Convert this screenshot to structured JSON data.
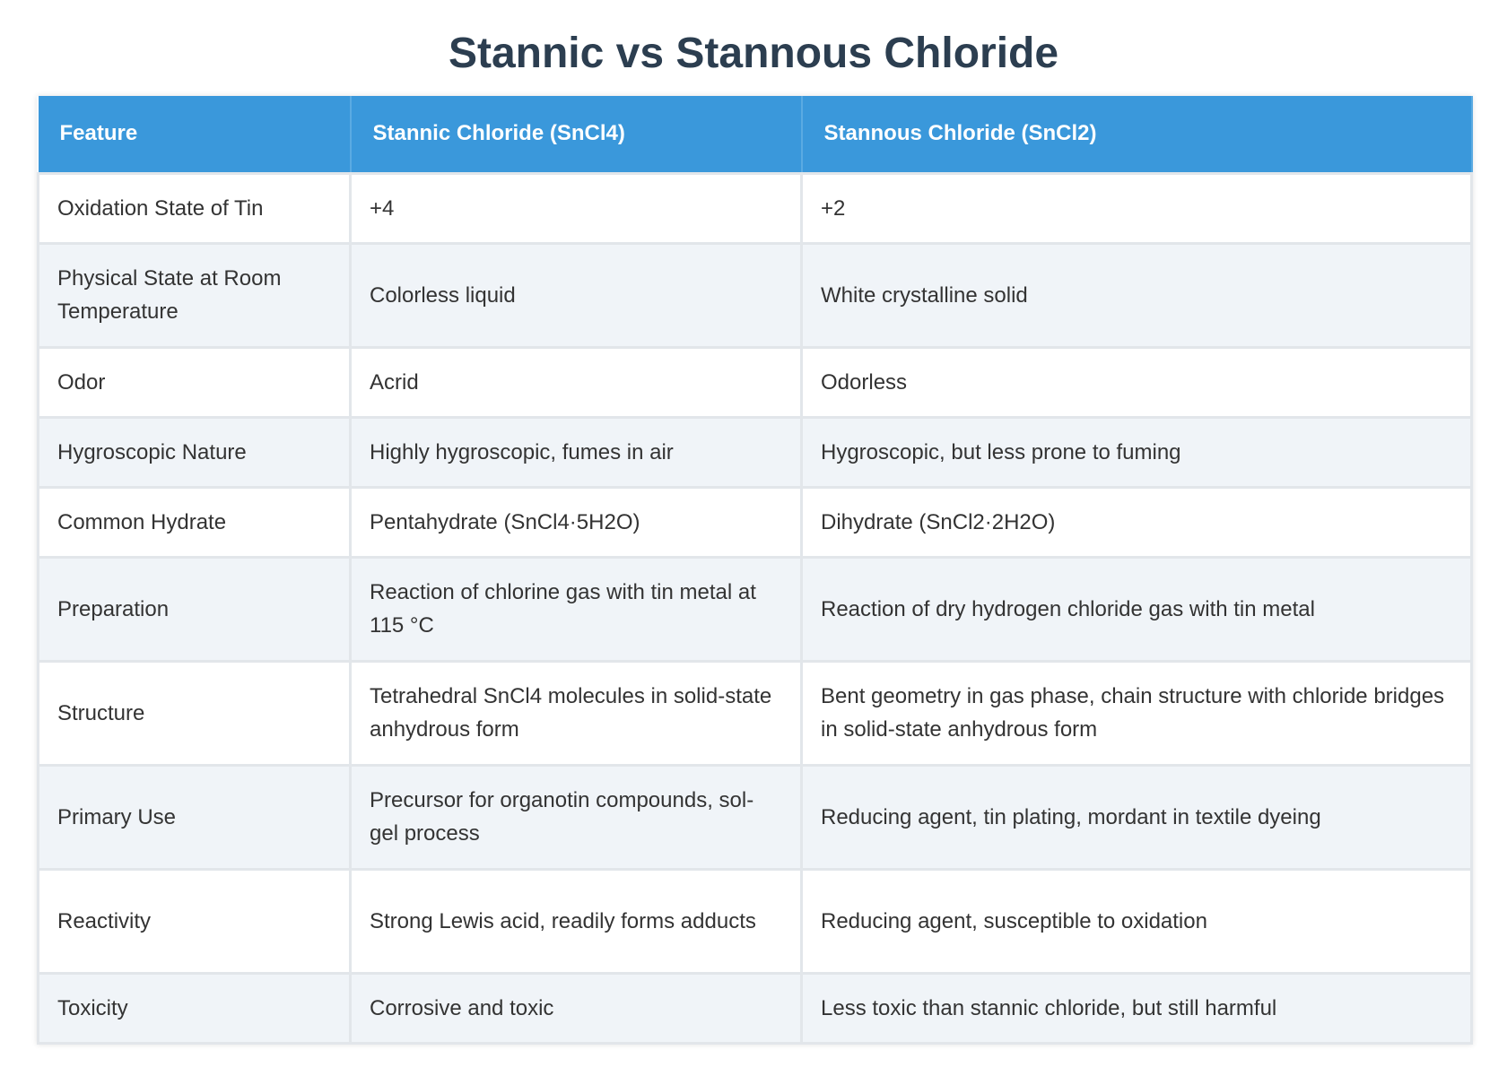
{
  "header": {
    "title": "Stannic vs Stannous Chloride"
  },
  "table": {
    "columns": [
      "Feature",
      "Stannic Chloride (SnCl4)",
      "Stannous Chloride (SnCl2)"
    ],
    "rows": [
      [
        "Oxidation State of Tin",
        "+4",
        "+2"
      ],
      [
        "Physical State at Room Temperature",
        "Colorless liquid",
        "White crystalline solid"
      ],
      [
        "Odor",
        "Acrid",
        "Odorless"
      ],
      [
        "Hygroscopic Nature",
        "Highly hygroscopic, fumes in air",
        "Hygroscopic, but less prone to fuming"
      ],
      [
        "Common Hydrate",
        "Pentahydrate (SnCl4·5H2O)",
        "Dihydrate (SnCl2·2H2O)"
      ],
      [
        "Preparation",
        "Reaction of chlorine gas with tin metal at 115 °C",
        "Reaction of dry hydrogen chloride gas with tin metal"
      ],
      [
        "Structure",
        "Tetrahedral SnCl4 molecules in solid-state anhydrous form",
        "Bent geometry in gas phase, chain structure with chloride bridges in solid-state anhydrous form"
      ],
      [
        "Primary Use",
        "Precursor for organotin compounds, sol-gel process",
        "Reducing agent, tin plating, mordant in textile dyeing"
      ],
      [
        "Reactivity",
        "Strong Lewis acid, readily forms adducts",
        "Reducing agent, susceptible to oxidation"
      ],
      [
        "Toxicity",
        "Corrosive and toxic",
        "Less toxic than stannic chloride, but still harmful"
      ]
    ]
  }
}
